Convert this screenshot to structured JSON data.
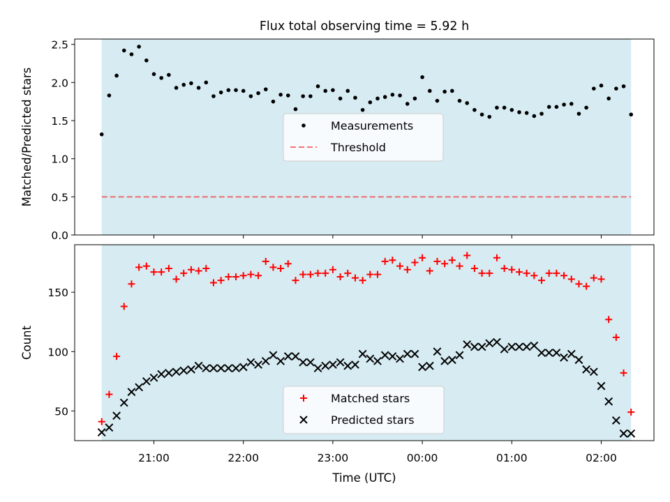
{
  "title": "Flux total observing time = 5.92 h",
  "colors": {
    "shade": "#add8e6",
    "threshold": "#ff0000",
    "measurement": "#000000",
    "matched": "#ff0000",
    "predicted": "#000000"
  },
  "chart_data": [
    {
      "type": "scatter",
      "panel": "top",
      "ylabel": "Matched/Predicted stars",
      "ylim": [
        0,
        2.57
      ],
      "yticks": [
        "0.0",
        "0.5",
        "1.0",
        "1.5",
        "2.0",
        "2.5"
      ],
      "legend": {
        "placement": "center",
        "entries": [
          "Measurements",
          "Threshold"
        ]
      },
      "threshold": 0.5,
      "shaded_span": [
        "20:25",
        "02:20"
      ],
      "series": [
        {
          "name": "Measurements",
          "x": [
            "20:25",
            "20:30",
            "20:35",
            "20:40",
            "20:45",
            "20:50",
            "20:55",
            "21:00",
            "21:05",
            "21:10",
            "21:15",
            "21:20",
            "21:25",
            "21:30",
            "21:35",
            "21:40",
            "21:45",
            "21:50",
            "21:55",
            "22:00",
            "22:05",
            "22:10",
            "22:15",
            "22:20",
            "22:25",
            "22:30",
            "22:35",
            "22:40",
            "22:45",
            "22:50",
            "22:55",
            "23:00",
            "23:05",
            "23:10",
            "23:15",
            "23:20",
            "23:25",
            "23:30",
            "23:35",
            "23:40",
            "23:45",
            "23:50",
            "23:55",
            "00:00",
            "00:05",
            "00:10",
            "00:15",
            "00:20",
            "00:25",
            "00:30",
            "00:35",
            "00:40",
            "00:45",
            "00:50",
            "00:55",
            "01:00",
            "01:05",
            "01:10",
            "01:15",
            "01:20",
            "01:25",
            "01:30",
            "01:35",
            "01:40",
            "01:45",
            "01:50",
            "01:55",
            "02:00",
            "02:05",
            "02:10",
            "02:15",
            "02:20"
          ],
          "values": [
            1.32,
            1.83,
            2.09,
            2.42,
            2.37,
            2.47,
            2.29,
            2.11,
            2.06,
            2.1,
            1.93,
            1.97,
            1.99,
            1.93,
            2.0,
            1.82,
            1.87,
            1.9,
            1.9,
            1.89,
            1.82,
            1.86,
            1.91,
            1.75,
            1.84,
            1.83,
            1.65,
            1.82,
            1.82,
            1.95,
            1.89,
            1.9,
            1.79,
            1.89,
            1.8,
            1.64,
            1.74,
            1.79,
            1.81,
            1.84,
            1.83,
            1.72,
            1.79,
            2.07,
            1.89,
            1.76,
            1.88,
            1.89,
            1.76,
            1.73,
            1.64,
            1.58,
            1.55,
            1.67,
            1.67,
            1.64,
            1.61,
            1.6,
            1.56,
            1.59,
            1.68,
            1.68,
            1.71,
            1.72,
            1.59,
            1.67,
            1.92,
            1.96,
            1.79,
            1.92,
            1.95,
            1.58
          ]
        }
      ]
    },
    {
      "type": "scatter",
      "panel": "bottom",
      "xlabel": "Time (UTC)",
      "ylabel": "Count",
      "ylim": [
        25,
        190
      ],
      "yticks": [
        "50",
        "100",
        "150"
      ],
      "xticks": [
        "21:00",
        "22:00",
        "23:00",
        "00:00",
        "01:00",
        "02:00"
      ],
      "legend": {
        "placement": "lower center",
        "entries": [
          "Matched stars",
          "Predicted stars"
        ]
      },
      "shaded_span": [
        "20:25",
        "02:20"
      ],
      "series": [
        {
          "name": "Matched stars",
          "x": [
            "20:25",
            "20:30",
            "20:35",
            "20:40",
            "20:45",
            "20:50",
            "20:55",
            "21:00",
            "21:05",
            "21:10",
            "21:15",
            "21:20",
            "21:25",
            "21:30",
            "21:35",
            "21:40",
            "21:45",
            "21:50",
            "21:55",
            "22:00",
            "22:05",
            "22:10",
            "22:15",
            "22:20",
            "22:25",
            "22:30",
            "22:35",
            "22:40",
            "22:45",
            "22:50",
            "22:55",
            "23:00",
            "23:05",
            "23:10",
            "23:15",
            "23:20",
            "23:25",
            "23:30",
            "23:35",
            "23:40",
            "23:45",
            "23:50",
            "23:55",
            "00:00",
            "00:05",
            "00:10",
            "00:15",
            "00:20",
            "00:25",
            "00:30",
            "00:35",
            "00:40",
            "00:45",
            "00:50",
            "00:55",
            "01:00",
            "01:05",
            "01:10",
            "01:15",
            "01:20",
            "01:25",
            "01:30",
            "01:35",
            "01:40",
            "01:45",
            "01:50",
            "01:55",
            "02:00",
            "02:05",
            "02:10",
            "02:15",
            "02:20"
          ],
          "values": [
            41,
            64,
            96,
            138,
            157,
            171,
            172,
            167,
            167,
            170,
            161,
            166,
            169,
            168,
            170,
            158,
            160,
            163,
            163,
            164,
            165,
            164,
            176,
            171,
            170,
            174,
            160,
            165,
            165,
            166,
            166,
            169,
            163,
            166,
            162,
            160,
            165,
            165,
            176,
            177,
            172,
            169,
            175,
            179,
            168,
            176,
            174,
            177,
            172,
            181,
            170,
            166,
            166,
            179,
            170,
            169,
            167,
            166,
            164,
            160,
            166,
            166,
            164,
            161,
            157,
            155,
            162,
            161,
            127,
            112,
            82,
            49
          ]
        },
        {
          "name": "Predicted stars",
          "x": [
            "20:25",
            "20:30",
            "20:35",
            "20:40",
            "20:45",
            "20:50",
            "20:55",
            "21:00",
            "21:05",
            "21:10",
            "21:15",
            "21:20",
            "21:25",
            "21:30",
            "21:35",
            "21:40",
            "21:45",
            "21:50",
            "21:55",
            "22:00",
            "22:05",
            "22:10",
            "22:15",
            "22:20",
            "22:25",
            "22:30",
            "22:35",
            "22:40",
            "22:45",
            "22:50",
            "22:55",
            "23:00",
            "23:05",
            "23:10",
            "23:15",
            "23:20",
            "23:25",
            "23:30",
            "23:35",
            "23:40",
            "23:45",
            "23:50",
            "23:55",
            "00:00",
            "00:05",
            "00:10",
            "00:15",
            "00:20",
            "00:25",
            "00:30",
            "00:35",
            "00:40",
            "00:45",
            "00:50",
            "00:55",
            "01:00",
            "01:05",
            "01:10",
            "01:15",
            "01:20",
            "01:25",
            "01:30",
            "01:35",
            "01:40",
            "01:45",
            "01:50",
            "01:55",
            "02:00",
            "02:05",
            "02:10",
            "02:15",
            "02:20"
          ],
          "values": [
            32,
            36,
            46,
            57,
            66,
            70,
            75,
            78,
            81,
            82,
            83,
            84,
            85,
            88,
            86,
            86,
            86,
            86,
            86,
            87,
            91,
            89,
            92,
            97,
            92,
            96,
            96,
            91,
            91,
            86,
            88,
            89,
            91,
            88,
            89,
            98,
            94,
            92,
            97,
            96,
            94,
            98,
            98,
            87,
            88,
            100,
            92,
            93,
            97,
            106,
            104,
            104,
            107,
            108,
            102,
            104,
            104,
            104,
            105,
            99,
            99,
            99,
            95,
            98,
            93,
            85,
            83,
            71,
            58,
            42,
            31,
            31
          ]
        }
      ]
    }
  ]
}
